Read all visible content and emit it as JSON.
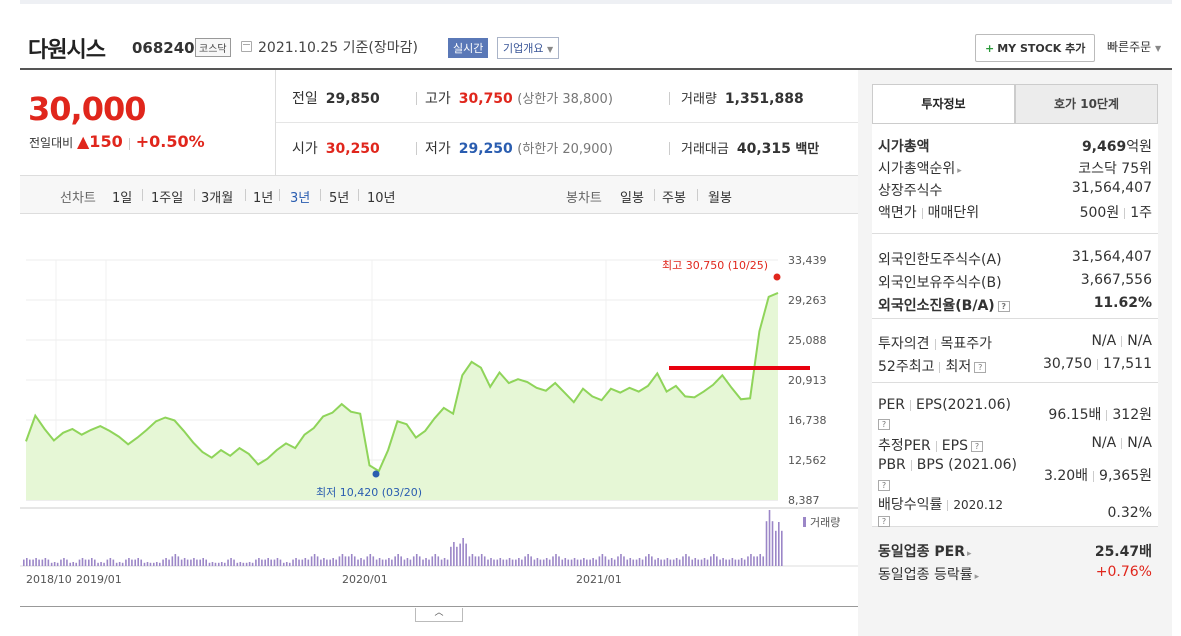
{
  "header": {
    "stock_name": "다원시스",
    "stock_code": "068240",
    "market": "코스닥",
    "date_text": "2021.10.25 기준(장마감)",
    "realtime": "실시간",
    "overview": "기업개요",
    "mystock": "MY STOCK 추가",
    "quick_order": "빠른주문"
  },
  "price": {
    "current": "30,000",
    "change_label": "전일대비",
    "change_value": "▲150",
    "change_pct": "+0.50%"
  },
  "quote": {
    "prev_label": "전일",
    "prev_value": "29,850",
    "high_label": "고가",
    "high_value": "30,750",
    "high_sub": "(상한가 38,800)",
    "volume_label": "거래량",
    "volume_value": "1,351,888",
    "open_label": "시가",
    "open_value": "30,250",
    "low_label": "저가",
    "low_value": "29,250",
    "low_sub": "(하한가 20,900)",
    "amount_label": "거래대금",
    "amount_value": "40,315",
    "amount_unit": "백만"
  },
  "periods": {
    "line_label": "선차트",
    "line_items": [
      "1일",
      "1주일",
      "3개월",
      "1년",
      "3년",
      "5년",
      "10년"
    ],
    "active": "3년",
    "candle_label": "봉차트",
    "candle_items": [
      "일봉",
      "주봉",
      "월봉"
    ]
  },
  "chart_data": {
    "type": "area",
    "y_ticks": [
      "33,439",
      "29,263",
      "25,088",
      "20,913",
      "16,738",
      "12,562",
      "8,387"
    ],
    "ylim": [
      8387,
      33439
    ],
    "x_ticks": [
      "2018/10",
      "2019/01",
      "2020/01",
      "2021/01"
    ],
    "high_label": "최고 30,750 (10/25)",
    "low_label": "최저 10,420 (03/20)",
    "volume_label": "거래량",
    "price_color": "#8fd45a",
    "fill_color": "#e6f7d6",
    "volume_color": "#9b86c7",
    "highlight_color": "#e8000e",
    "price_series": [
      14500,
      17200,
      15800,
      14600,
      15400,
      15800,
      15200,
      15700,
      16100,
      15600,
      15000,
      14200,
      14900,
      15700,
      16600,
      17000,
      16700,
      15600,
      14400,
      13400,
      12800,
      13600,
      13000,
      13800,
      13200,
      12100,
      12700,
      13600,
      14300,
      13800,
      15200,
      15900,
      17100,
      17500,
      18400,
      17600,
      17400,
      12000,
      11400,
      13600,
      16600,
      16300,
      14900,
      15600,
      16900,
      18000,
      17400,
      21400,
      22800,
      22200,
      20200,
      21700,
      20600,
      21000,
      20700,
      20100,
      19800,
      20600,
      19600,
      18600,
      20000,
      19200,
      18800,
      20000,
      19600,
      20100,
      19700,
      20300,
      21600,
      19700,
      20300,
      19200,
      19100,
      19700,
      20400,
      21400,
      20100,
      18900,
      19000,
      26000,
      29600,
      30000
    ],
    "volume_bars": [
      2,
      2,
      2,
      1,
      2,
      1,
      2,
      2,
      1,
      2,
      1,
      2,
      2,
      1,
      1,
      2,
      3,
      2,
      2,
      2,
      1,
      1,
      2,
      1,
      1,
      2,
      2,
      2,
      1,
      2,
      2,
      3,
      2,
      2,
      3,
      3,
      2,
      3,
      2,
      2,
      3,
      2,
      3,
      2,
      3,
      2,
      6,
      7,
      3,
      3,
      2,
      2,
      2,
      2,
      3,
      2,
      2,
      3,
      2,
      2,
      2,
      2,
      3,
      2,
      3,
      2,
      2,
      3,
      2,
      2,
      2,
      3,
      2,
      2,
      3,
      2,
      2,
      2,
      3,
      3,
      14,
      11
    ]
  },
  "tabs": {
    "active": "투자정보",
    "inactive": "호가 10단계"
  },
  "info": {
    "market_cap_label": "시가총액",
    "market_cap_value": "9,469",
    "market_cap_unit": "억원",
    "cap_rank_label": "시가총액순위",
    "cap_rank_value": "코스닥 75위",
    "shares_label": "상장주식수",
    "shares_value": "31,564,407",
    "par_label_a": "액면가",
    "par_label_b": "매매단위",
    "par_value_a": "500원",
    "par_value_b": "1주",
    "foreign_limit_label": "외국인한도주식수(A)",
    "foreign_limit_value": "31,564,407",
    "foreign_hold_label": "외국인보유주식수(B)",
    "foreign_hold_value": "3,667,556",
    "foreign_ratio_label": "외국인소진율(B/A)",
    "foreign_ratio_value": "11.62%",
    "opinion_label_a": "투자의견",
    "opinion_label_b": "목표주가",
    "opinion_value_a": "N/A",
    "opinion_value_b": "N/A",
    "wk52_label_a": "52주최고",
    "wk52_label_b": "최저",
    "wk52_value_a": "30,750",
    "wk52_value_b": "17,511",
    "per_label_a": "PER",
    "per_label_b": "EPS(2021.06)",
    "per_value_a": "96.15배",
    "per_value_b": "312원",
    "est_label_a": "추정PER",
    "est_label_b": "EPS",
    "est_value_a": "N/A",
    "est_value_b": "N/A",
    "pbr_label_a": "PBR",
    "pbr_label_b": "BPS (2021.06)",
    "pbr_value_a": "3.20배",
    "pbr_value_b": "9,365원",
    "div_label": "배당수익률",
    "div_date": "2020.12",
    "div_value": "0.32%",
    "ind_per_label": "동일업종 PER",
    "ind_per_value": "25.47배",
    "ind_chg_label": "동일업종 등락률",
    "ind_chg_value": "+0.76%"
  }
}
